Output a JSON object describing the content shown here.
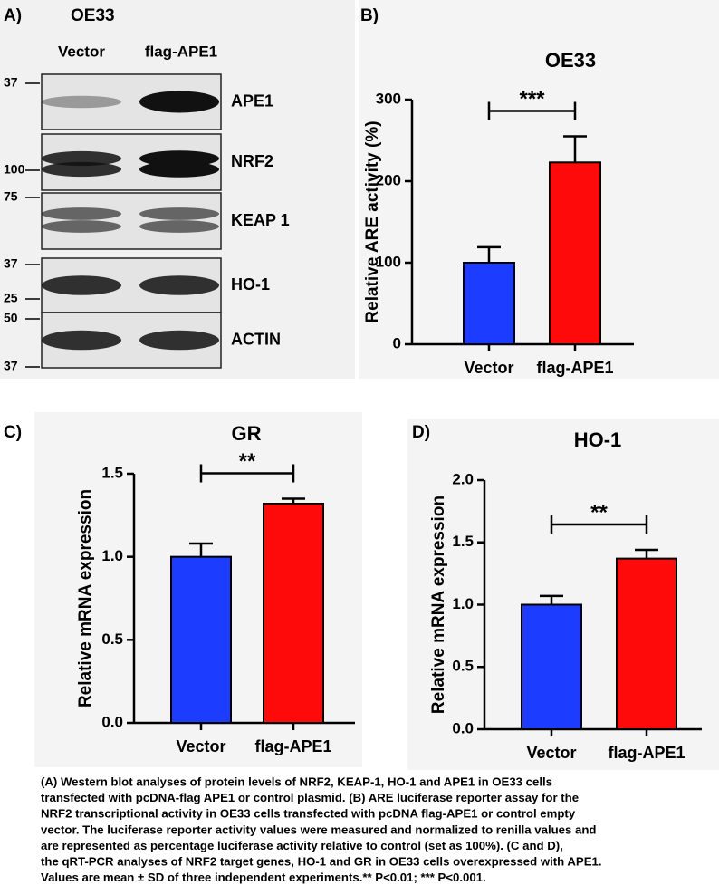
{
  "panels": {
    "a": "A)",
    "b": "B)",
    "c": "C)",
    "d": "D)"
  },
  "blot": {
    "title": "OE33",
    "lanes": [
      "Vector",
      "flag-APE1"
    ],
    "rows": [
      {
        "protein": "APE1",
        "markers": [
          "37"
        ]
      },
      {
        "protein": "NRF2",
        "markers": [
          "100"
        ]
      },
      {
        "protein": "KEAP 1",
        "markers": [
          "75"
        ]
      },
      {
        "protein": "HO-1",
        "markers": [
          "37",
          "25"
        ]
      },
      {
        "protein": "ACTIN",
        "markers": [
          "50",
          "37"
        ]
      }
    ]
  },
  "chart_data": [
    {
      "type": "bar",
      "title": "OE33",
      "y_label": "Relative ARE activity (%)",
      "categories": [
        "Vector",
        "flag-APE1"
      ],
      "values": [
        100,
        223
      ],
      "errors": [
        19,
        32
      ],
      "colors": [
        "#1c3cff",
        "#ff0a0a"
      ],
      "ylim": [
        0,
        300
      ],
      "yticks": [
        0,
        100,
        200,
        300
      ],
      "significance": "***"
    },
    {
      "type": "bar",
      "title": "GR",
      "y_label": "Relative mRNA expression",
      "categories": [
        "Vector",
        "flag-APE1"
      ],
      "values": [
        1.0,
        1.32
      ],
      "errors": [
        0.08,
        0.03
      ],
      "colors": [
        "#1c3cff",
        "#ff0a0a"
      ],
      "ylim": [
        0,
        1.5
      ],
      "yticks": [
        {
          "value": 0,
          "label": "0.0"
        },
        0.5,
        {
          "value": 1,
          "label": "1.0"
        },
        1.5
      ],
      "significance": "**"
    },
    {
      "type": "bar",
      "title": "HO-1",
      "y_label": "Relative mRNA expression",
      "categories": [
        "Vector",
        "flag-APE1"
      ],
      "values": [
        1.0,
        1.37
      ],
      "errors": [
        0.07,
        0.07
      ],
      "colors": [
        "#1c3cff",
        "#ff0a0a"
      ],
      "ylim": [
        0,
        2
      ],
      "yticks": [
        {
          "value": 0,
          "label": "0.0"
        },
        0.5,
        {
          "value": 1,
          "label": "1.0"
        },
        1.5,
        {
          "value": 2,
          "label": "2.0"
        }
      ],
      "significance": "**"
    }
  ],
  "caption": [
    "(A) Western blot analyses of protein levels of NRF2, KEAP-1, HO-1 and APE1 in OE33 cells",
    "transfected with pcDNA-flag APE1 or control plasmid. (B)  ARE luciferase reporter assay for the",
    "NRF2 transcriptional activity in OE33 cells transfected with pcDNA flag-APE1 or control empty",
    "vector. The luciferase reporter activity values were measured and normalized to renilla values and",
    "are represented as percentage luciferase activity relative to control (set as 100%). (C and D),",
    "the qRT-PCR analyses of NRF2 target genes, HO-1 and GR in OE33 cells overexpressed with APE1.",
    "Values are mean ± SD of three independent experiments.** P<0.01; *** P<0.001."
  ]
}
